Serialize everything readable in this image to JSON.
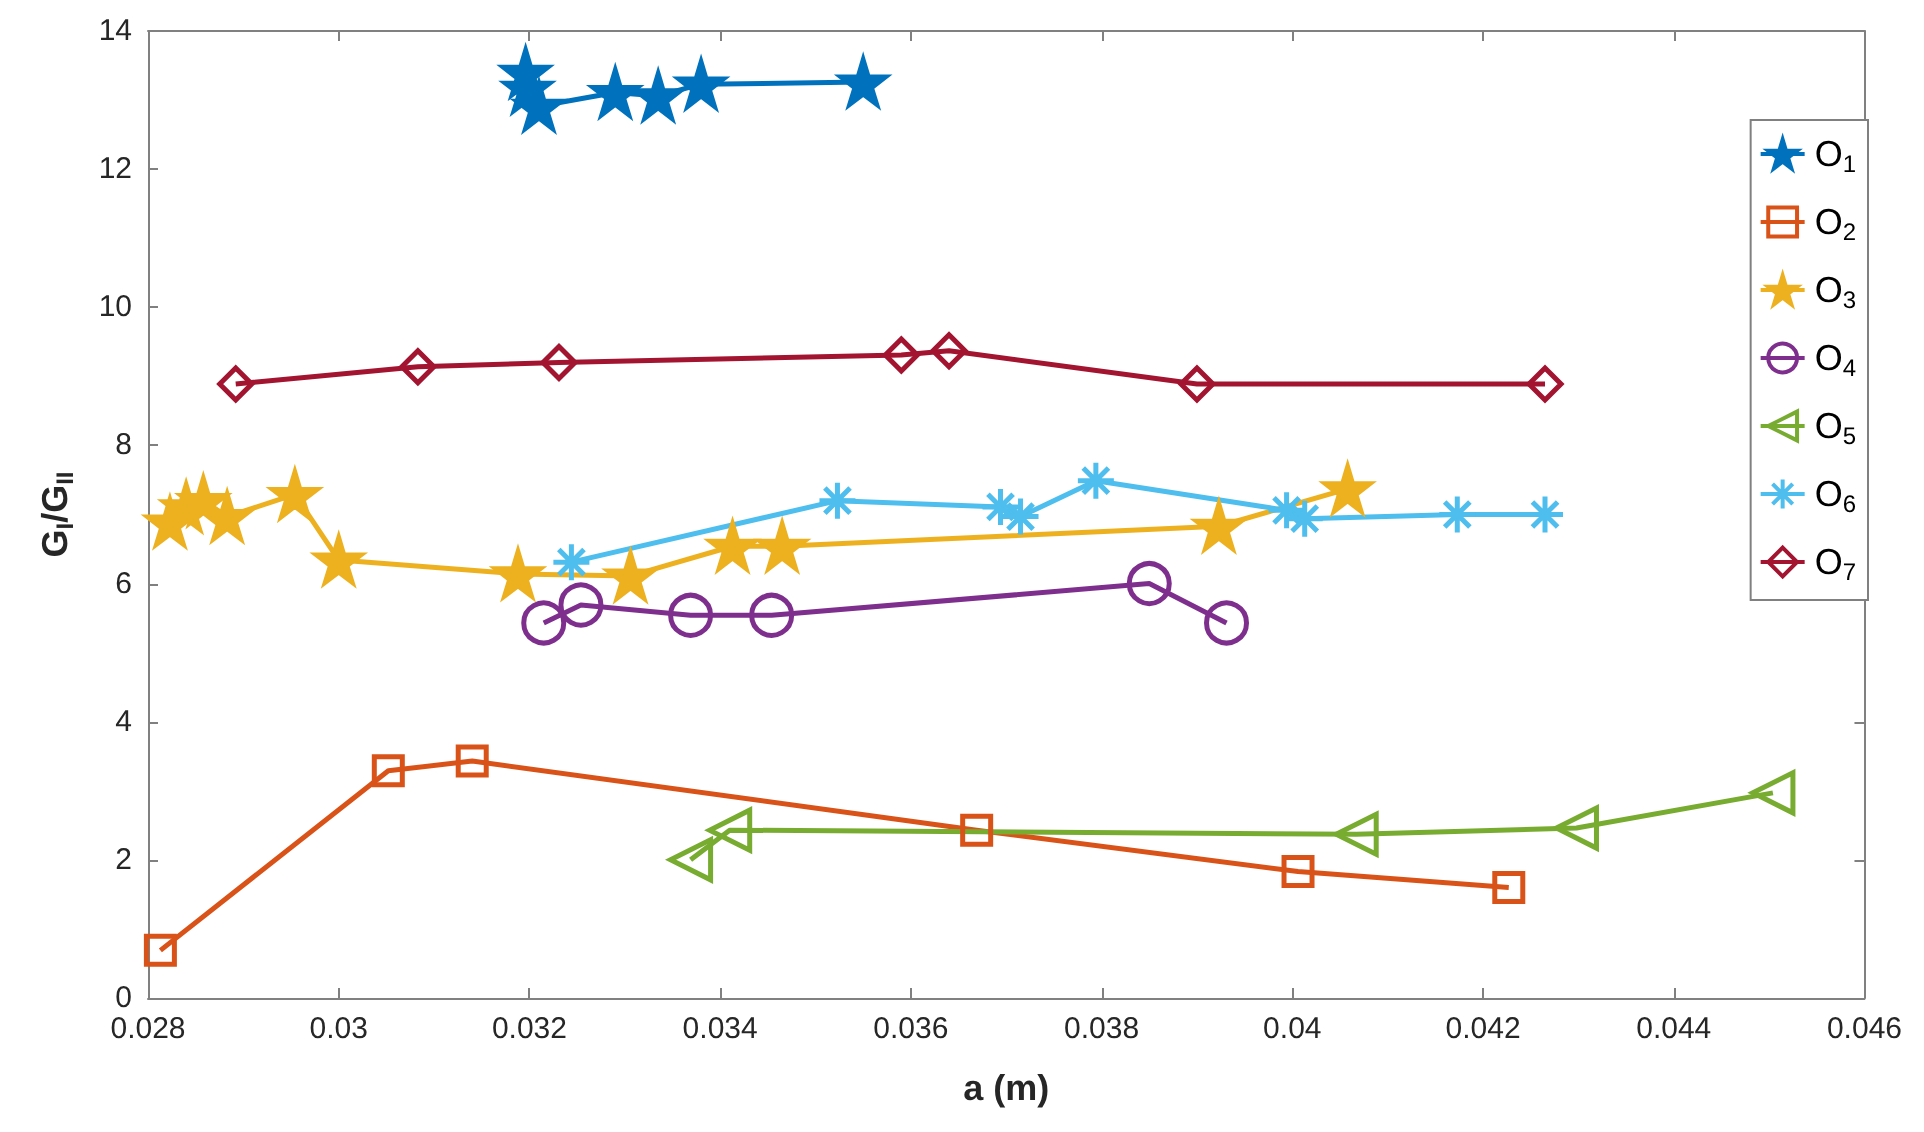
{
  "chart_data": {
    "type": "line",
    "xlabel": "a (m)",
    "ylabel": "G$_{I}$/G$_{II}$",
    "xlim": [
      0.028,
      0.046
    ],
    "xticks": [
      0.028,
      0.03,
      0.032,
      0.034,
      0.036,
      0.038,
      0.04,
      0.042,
      0.044,
      0.046
    ],
    "ylim": [
      0,
      14
    ],
    "yticks": [
      0,
      2,
      4,
      6,
      8,
      10,
      12,
      14
    ],
    "grid": false,
    "legend": "top right",
    "series": [
      {
        "name": "O$_{1}$",
        "color": "#0072bd",
        "marker": "star",
        "x": [
          0.03196,
          0.03198,
          0.0321,
          0.0329,
          0.03335,
          0.0338,
          0.0355
        ],
        "values": [
          13.4,
          13.17,
          12.91,
          13.11,
          13.06,
          13.23,
          13.26
        ]
      },
      {
        "name": "O$_{2}$",
        "color": "#d95319",
        "marker": "square",
        "x": [
          0.02813,
          0.03052,
          0.0314,
          0.03669,
          0.04006,
          0.04227
        ],
        "values": [
          0.69,
          3.29,
          3.43,
          2.43,
          1.83,
          1.6
        ]
      },
      {
        "name": "O$_{3}$",
        "color": "#edb120",
        "marker": "star",
        "x": [
          0.02823,
          0.0284,
          0.02858,
          0.02883,
          0.02954,
          0.03,
          0.03188,
          0.03306,
          0.03413,
          0.03465,
          0.03923,
          0.04058
        ],
        "values": [
          6.89,
          7.11,
          7.2,
          6.97,
          7.29,
          6.34,
          6.14,
          6.11,
          6.54,
          6.54,
          6.83,
          7.37
        ]
      },
      {
        "name": "O$_{4}$",
        "color": "#7e2f8e",
        "marker": "circle",
        "x": [
          0.03215,
          0.03254,
          0.03369,
          0.03454,
          0.0385,
          0.03931
        ],
        "values": [
          5.43,
          5.69,
          5.54,
          5.54,
          6.0,
          5.43
        ]
      },
      {
        "name": "O$_{5}$",
        "color": "#77ac30",
        "marker": "triangle",
        "x": [
          0.03369,
          0.0341,
          0.04067,
          0.04298,
          0.04504
        ],
        "values": [
          2.0,
          2.43,
          2.37,
          2.46,
          2.97
        ]
      },
      {
        "name": "O$_{6}$",
        "color": "#4dbeee",
        "marker": "cross",
        "x": [
          0.03244,
          0.03523,
          0.03694,
          0.03715,
          0.03794,
          0.03994,
          0.04013,
          0.04173,
          0.04265
        ],
        "values": [
          6.31,
          7.2,
          7.11,
          6.97,
          7.49,
          7.06,
          6.94,
          7.0,
          7.0
        ]
      },
      {
        "name": "O$_{7}$",
        "color": "#a2142f",
        "marker": "diamond",
        "x": [
          0.02892,
          0.03083,
          0.03231,
          0.0359,
          0.0364,
          0.039,
          0.04265
        ],
        "values": [
          8.89,
          9.14,
          9.2,
          9.31,
          9.37,
          8.89,
          8.89
        ]
      }
    ]
  }
}
